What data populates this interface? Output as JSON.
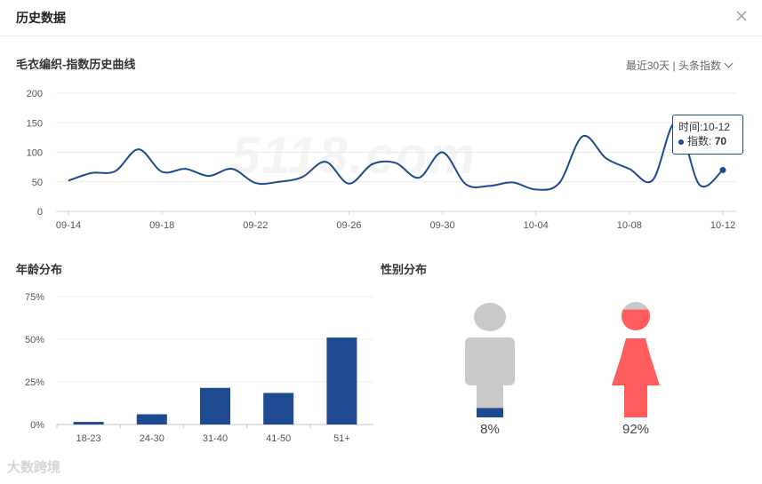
{
  "window": {
    "title": "历史数据"
  },
  "trend": {
    "title": "毛衣编织-指数历史曲线",
    "range_label": "最近30天 | 头条指数",
    "tooltip": {
      "time_label": "时间:10-12",
      "index_label": "指数:",
      "index_value": "70"
    },
    "watermark": "5118.com"
  },
  "age": {
    "title": "年龄分布"
  },
  "gender": {
    "title": "性别分布",
    "male_pct": "8%",
    "female_pct": "92%",
    "male_fill": 0.08,
    "female_fill": 0.92
  },
  "brand": "大数跨境",
  "colors": {
    "series": "#1e4a8f",
    "female": "#ff5d5d",
    "neutral": "#c9c9c9"
  },
  "chart_data": [
    {
      "type": "line",
      "title": "毛衣编织-指数历史曲线",
      "x": [
        "09-14",
        "09-15",
        "09-16",
        "09-17",
        "09-18",
        "09-19",
        "09-20",
        "09-21",
        "09-22",
        "09-23",
        "09-24",
        "09-25",
        "09-26",
        "09-27",
        "09-28",
        "09-29",
        "09-30",
        "10-01",
        "10-02",
        "10-03",
        "10-04",
        "10-05",
        "10-06",
        "10-07",
        "10-08",
        "10-09",
        "10-10",
        "10-11",
        "10-12"
      ],
      "x_tick_labels": [
        "09-14",
        "09-18",
        "09-22",
        "09-26",
        "09-30",
        "10-04",
        "10-08",
        "10-12"
      ],
      "series": [
        {
          "values": [
            52,
            65,
            68,
            105,
            67,
            72,
            60,
            72,
            48,
            50,
            58,
            84,
            47,
            80,
            82,
            57,
            100,
            46,
            43,
            49,
            37,
            48,
            127,
            90,
            72,
            53,
            152,
            45,
            70
          ]
        }
      ],
      "ylim": [
        0,
        200
      ],
      "yticks": [
        0,
        50,
        100,
        150,
        200
      ],
      "grid": true
    },
    {
      "type": "bar",
      "title": "年龄分布",
      "categories": [
        "18-23",
        "24-30",
        "31-40",
        "41-50",
        "51+"
      ],
      "values": [
        1.5,
        6,
        21.5,
        18.5,
        51
      ],
      "ylim": [
        0,
        75
      ],
      "ytick_labels": [
        "0%",
        "25%",
        "50%",
        "75%"
      ],
      "grid": true
    }
  ]
}
